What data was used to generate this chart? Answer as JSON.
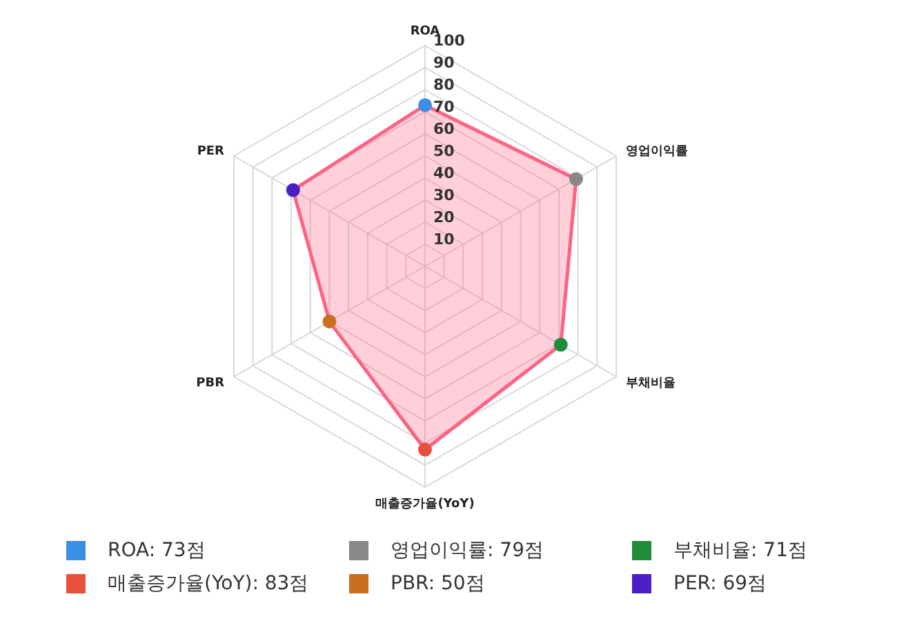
{
  "chart_data": {
    "type": "radar",
    "categories": [
      "ROA",
      "영업이익률",
      "부채비율",
      "매출증가율(YoY)",
      "PBR",
      "PER"
    ],
    "series": [
      {
        "color": "#ff6384",
        "values": [
          73,
          79,
          71,
          83,
          50,
          69
        ]
      }
    ],
    "colors": [
      "#3a8ee6",
      "#888888",
      "#1e8c3a",
      "#e8503a",
      "#c87020",
      "#4b1fc4"
    ],
    "annotations": [
      "ROA: 73점",
      "영업이익률: 79점",
      "부채비율: 71점",
      "매출증가율(YoY): 83점",
      "PBR: 50점",
      "PER: 69점"
    ],
    "ylim": [
      0,
      100
    ],
    "yticks": [
      10,
      20,
      30,
      40,
      50,
      60,
      70,
      80,
      90,
      100
    ],
    "grid": true,
    "marker": "circle"
  }
}
